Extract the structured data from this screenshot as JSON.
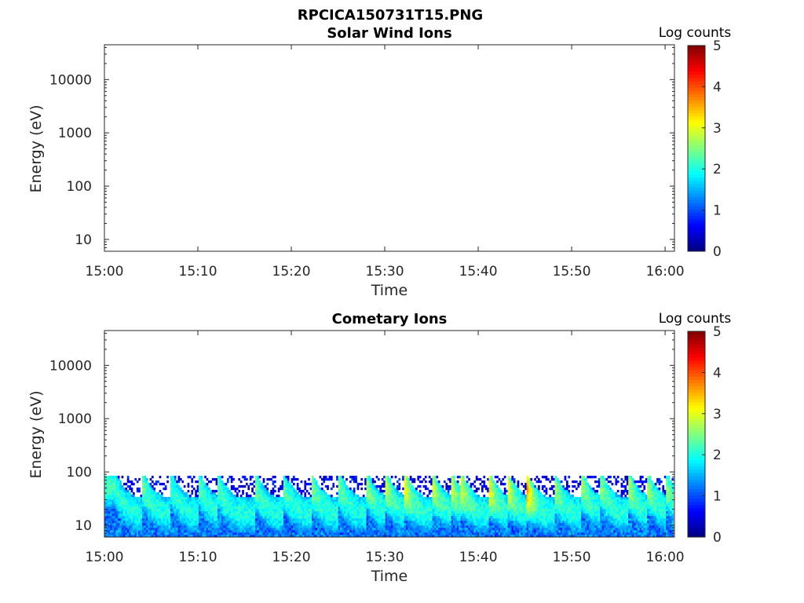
{
  "figure": {
    "title": "RPCICA150731T15.PNG"
  },
  "chart_data": [
    {
      "type": "heatmap",
      "title": "Solar Wind Ions",
      "xlabel": "Time",
      "ylabel": "Energy (eV)",
      "xticks": [
        "15:00",
        "15:10",
        "15:20",
        "15:30",
        "15:40",
        "15:50",
        "16:00"
      ],
      "xlim": [
        "15:00",
        "16:01"
      ],
      "yscale": "log",
      "yticks": [
        10,
        100,
        1000,
        10000
      ],
      "ytick_labels": [
        "10",
        "100",
        "1000",
        "10000"
      ],
      "ylim": [
        6,
        45000
      ],
      "colorbar": {
        "label": "Log counts",
        "range": [
          0,
          5
        ],
        "ticks": [
          "0",
          "1",
          "2",
          "3",
          "4",
          "5"
        ],
        "colormap": "jet"
      },
      "data": "empty"
    },
    {
      "type": "heatmap",
      "title": "Cometary Ions",
      "xlabel": "Time",
      "ylabel": "Energy (eV)",
      "xticks": [
        "15:00",
        "15:10",
        "15:20",
        "15:30",
        "15:40",
        "15:50",
        "16:00"
      ],
      "xlim": [
        "15:00",
        "16:01"
      ],
      "yscale": "log",
      "yticks": [
        10,
        100,
        1000,
        10000
      ],
      "ytick_labels": [
        "10",
        "100",
        "1000",
        "10000"
      ],
      "ylim": [
        6,
        45000
      ],
      "colorbar": {
        "label": "Log counts",
        "range": [
          0,
          5
        ],
        "ticks": [
          "0",
          "1",
          "2",
          "3",
          "4",
          "5"
        ],
        "colormap": "jet"
      },
      "signal_energy_range_eV": [
        6,
        85
      ],
      "peak_energy_eV": 25,
      "typical_log_counts": 2,
      "max_log_counts": 4,
      "bursts": [
        {
          "time": "15:01",
          "log_counts": 2.2
        },
        {
          "time": "15:04",
          "log_counts": 2.4
        },
        {
          "time": "15:07",
          "log_counts": 2.2
        },
        {
          "time": "15:10",
          "log_counts": 2.3
        },
        {
          "time": "15:12",
          "log_counts": 2.4
        },
        {
          "time": "15:16",
          "log_counts": 2.5
        },
        {
          "time": "15:19",
          "log_counts": 2.4
        },
        {
          "time": "15:22",
          "log_counts": 2.7
        },
        {
          "time": "15:25",
          "log_counts": 2.5
        },
        {
          "time": "15:28",
          "log_counts": 2.6
        },
        {
          "time": "15:30",
          "log_counts": 2.9
        },
        {
          "time": "15:32",
          "log_counts": 3.3
        },
        {
          "time": "15:35",
          "log_counts": 3.0
        },
        {
          "time": "15:37",
          "log_counts": 3.1
        },
        {
          "time": "15:38",
          "log_counts": 3.2
        },
        {
          "time": "15:41",
          "log_counts": 3.4
        },
        {
          "time": "15:43",
          "log_counts": 3.3
        },
        {
          "time": "15:45",
          "log_counts": 3.9
        },
        {
          "time": "15:48",
          "log_counts": 2.9
        },
        {
          "time": "15:51",
          "log_counts": 2.7
        },
        {
          "time": "15:53",
          "log_counts": 2.6
        },
        {
          "time": "15:56",
          "log_counts": 2.8
        },
        {
          "time": "15:58",
          "log_counts": 2.7
        },
        {
          "time": "16:00",
          "log_counts": 2.6
        }
      ]
    }
  ]
}
